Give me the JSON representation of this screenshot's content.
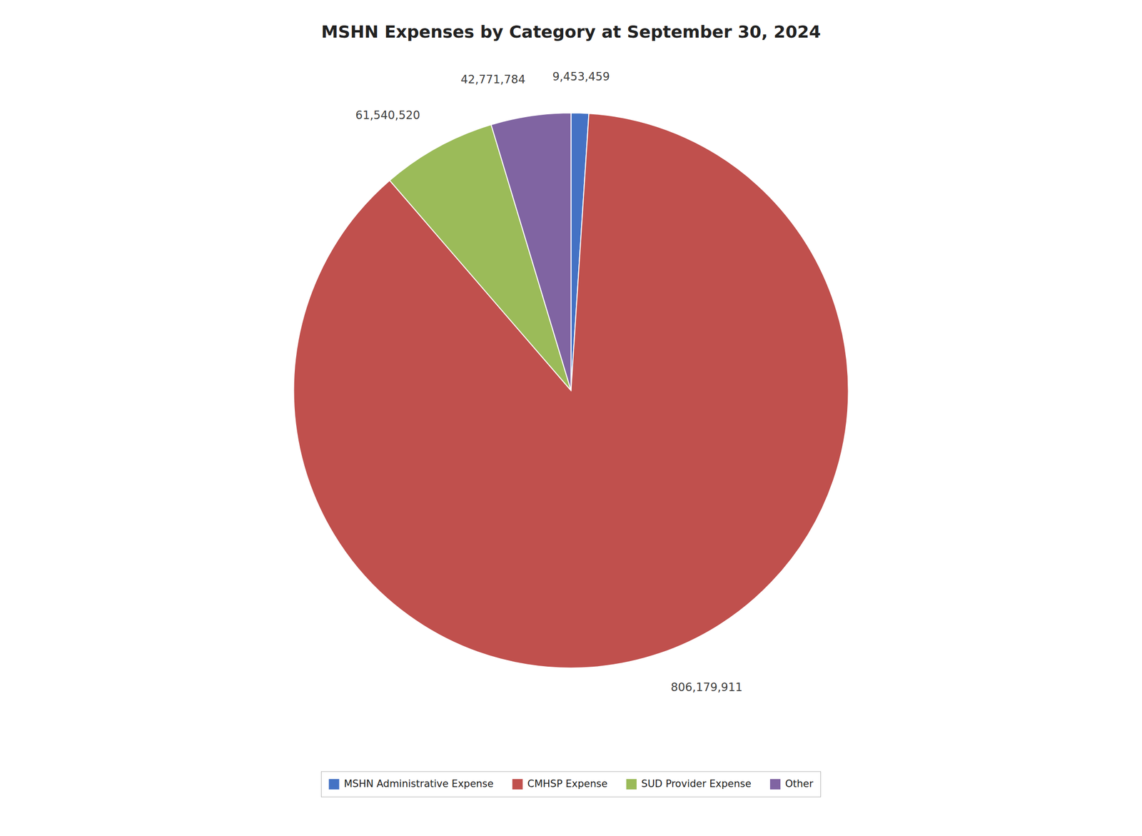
{
  "chart_data": {
    "type": "pie",
    "title": "MSHN Expenses by Category at September 30, 2024",
    "categories": [
      "MSHN Administrative Expense",
      "CMHSP Expense",
      "SUD Provider Expense",
      "Other"
    ],
    "values": [
      9453459,
      806179911,
      61540520,
      42771784
    ],
    "value_labels": [
      "9,453,459",
      "806,179,911",
      "61,540,520",
      "42,771,784"
    ],
    "colors": [
      "#4472C4",
      "#C0504D",
      "#9BBB59",
      "#8064A2"
    ],
    "data_labels": true,
    "legend": "bottom"
  }
}
